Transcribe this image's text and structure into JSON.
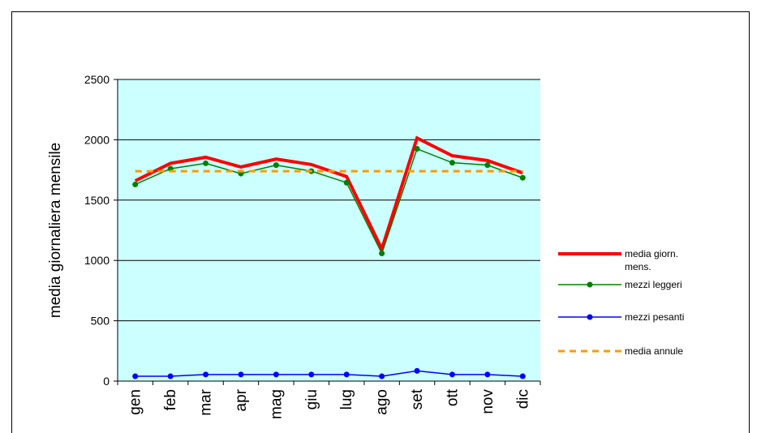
{
  "chart_data": {
    "type": "line",
    "y_label": "media giornaliera mensile",
    "categories": [
      "gen",
      "feb",
      "mar",
      "apr",
      "mag",
      "giu",
      "lug",
      "ago",
      "set",
      "ott",
      "nov",
      "dic"
    ],
    "series": [
      {
        "name": "media giorn. mens.",
        "color": "#ff0000",
        "marker": false,
        "dashed": false,
        "values": [
          1660,
          1805,
          1855,
          1775,
          1840,
          1795,
          1695,
          1095,
          2015,
          1868,
          1828,
          1725
        ]
      },
      {
        "name": "mezzi leggeri",
        "color": "#008000",
        "marker": true,
        "dashed": false,
        "values": [
          1630,
          1760,
          1805,
          1720,
          1790,
          1740,
          1645,
          1058,
          1925,
          1810,
          1790,
          1685
        ]
      },
      {
        "name": "mezzi pesanti",
        "color": "#0000ff",
        "marker": true,
        "dashed": false,
        "values": [
          40,
          40,
          55,
          55,
          55,
          55,
          55,
          40,
          85,
          55,
          55,
          40
        ]
      },
      {
        "name": "media annule",
        "color": "#ff9900",
        "marker": false,
        "dashed": true,
        "values": [
          1740,
          1740,
          1740,
          1740,
          1740,
          1740,
          1740,
          1740,
          1740,
          1740,
          1740,
          1740
        ]
      }
    ],
    "ylim": [
      0,
      2500
    ],
    "yticks": [
      0,
      500,
      1000,
      1500,
      2000,
      2500
    ],
    "grid": true,
    "background": "#ccffff",
    "legend": "right"
  }
}
